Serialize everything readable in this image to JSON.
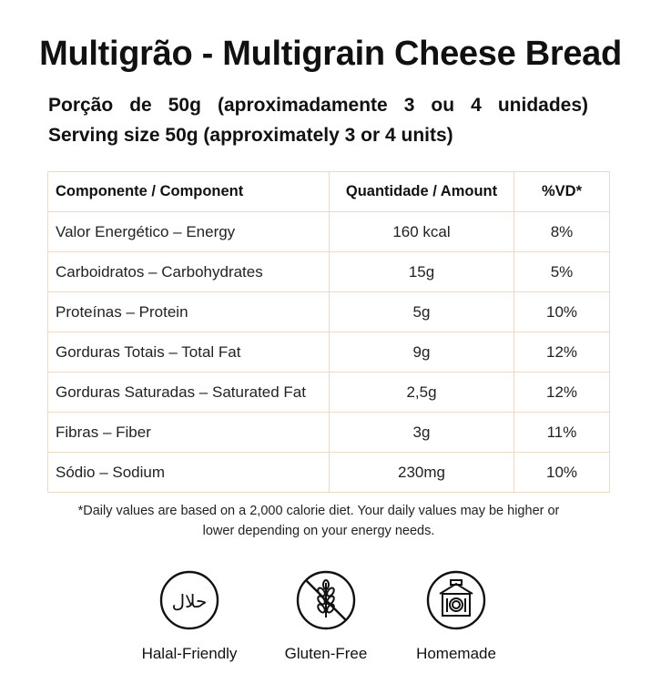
{
  "title": "Multigrão - Multigrain Cheese Bread",
  "serving": {
    "pt": "Porção de 50g (aproximadamente 3 ou 4 unidades)",
    "en": "Serving size 50g (approximately 3 or 4 units)"
  },
  "table": {
    "headers": [
      "Componente / Component",
      "Quantidade / Amount",
      "%VD*"
    ],
    "rows": [
      [
        "Valor Energético – Energy",
        "160 kcal",
        "8%"
      ],
      [
        "Carboidratos – Carbohydrates",
        "15g",
        "5%"
      ],
      [
        "Proteínas – Protein",
        "5g",
        "10%"
      ],
      [
        "Gorduras Totais – Total Fat",
        "9g",
        "12%"
      ],
      [
        "Gorduras Saturadas – Saturated Fat",
        "2,5g",
        "12%"
      ],
      [
        "Fibras – Fiber",
        "3g",
        "11%"
      ],
      [
        "Sódio – Sodium",
        "230mg",
        "10%"
      ]
    ]
  },
  "footnote": {
    "line1": "*Daily values are based on a 2,000 calorie diet. Your daily values may be higher or",
    "line2": "lower depending on your energy needs."
  },
  "badges": [
    {
      "icon": "halal-icon",
      "label": "Halal-Friendly",
      "icon_text": "حلال"
    },
    {
      "icon": "gluten-free-icon",
      "label": "Gluten-Free"
    },
    {
      "icon": "homemade-icon",
      "label": "Homemade"
    }
  ],
  "colors": {
    "table_border": "#ecd9c6",
    "text": "#111111"
  }
}
